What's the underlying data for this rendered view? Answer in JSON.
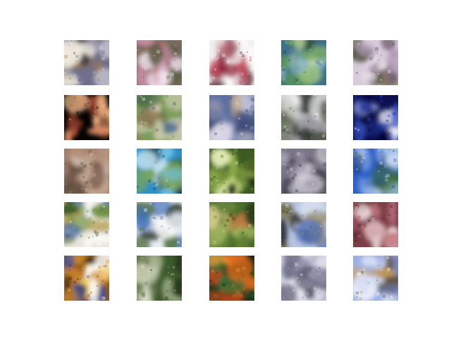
{
  "figure": {
    "background": "#ffffff",
    "rows": 5,
    "columns": 5
  },
  "tiles": [
    {
      "subject": "blurry-figure-on-pale-background",
      "palette": [
        "#6d6f8c",
        "#c9c7d6",
        "#e2d9c2",
        "#a87b3f",
        "#3c3a4a",
        "#efe9e0"
      ]
    },
    {
      "subject": "pink-and-green-texture",
      "palette": [
        "#7c6b5e",
        "#c98fa8",
        "#e9d6e4",
        "#4d5a3a",
        "#b46e7a",
        "#f1e6ef"
      ]
    },
    {
      "subject": "red-object-on-white",
      "palette": [
        "#f2eef0",
        "#8e2438",
        "#c24a5c",
        "#5a1f2b",
        "#d8b6bd",
        "#ffffff"
      ]
    },
    {
      "subject": "tree-on-blue-green",
      "palette": [
        "#3e6e8a",
        "#5f9a4e",
        "#9bc37a",
        "#27462f",
        "#8fb6c7",
        "#c9d9a8"
      ]
    },
    {
      "subject": "dark-shape-on-lavender",
      "palette": [
        "#d7cbdc",
        "#b29ab8",
        "#4a4b35",
        "#8b7d5a",
        "#efe7f0",
        "#6d5c70"
      ]
    },
    {
      "subject": "red-fruit-on-black",
      "palette": [
        "#050302",
        "#8a3b2a",
        "#c85b3c",
        "#e7936b",
        "#5a2418",
        "#f4c08e"
      ]
    },
    {
      "subject": "green-landscape",
      "palette": [
        "#7b9c5d",
        "#c5c8a8",
        "#4a7044",
        "#e1d7bf",
        "#8f7a55",
        "#3c5d8c"
      ]
    },
    {
      "subject": "blue-gray-blur",
      "palette": [
        "#5c6e9f",
        "#9ba6c8",
        "#c8a883",
        "#3f4a76",
        "#dad6e6",
        "#7d87ad"
      ]
    },
    {
      "subject": "gray-building",
      "palette": [
        "#9a9aa0",
        "#d6d6d6",
        "#4c5145",
        "#6f7a61",
        "#eeeeee",
        "#2f3330"
      ]
    },
    {
      "subject": "moon-on-dark-blue",
      "palette": [
        "#0b0f4f",
        "#1b2d8f",
        "#ffffff",
        "#a7b6f2",
        "#060832",
        "#3b56c8"
      ]
    },
    {
      "subject": "brown-texture",
      "palette": [
        "#9b7a66",
        "#c7a894",
        "#6e5144",
        "#d8c3b3",
        "#5a4a3c",
        "#b08a75"
      ]
    },
    {
      "subject": "blue-sky-with-tree",
      "palette": [
        "#2e8fc5",
        "#75c3e8",
        "#3d5f2f",
        "#0e3b5c",
        "#c6e4f3",
        "#7aa45a"
      ]
    },
    {
      "subject": "green-foliage",
      "palette": [
        "#3d5a22",
        "#8fb04c",
        "#cfe089",
        "#243316",
        "#6f8b36",
        "#e6edb8"
      ]
    },
    {
      "subject": "gray-purple-shape",
      "palette": [
        "#7a7687",
        "#bdb8c6",
        "#4a4756",
        "#dcd8e1",
        "#2f3038",
        "#9a93a8"
      ]
    },
    {
      "subject": "blue-sky-over-hill",
      "palette": [
        "#2d5fc6",
        "#7fa3e4",
        "#d6e2f4",
        "#3f6e3a",
        "#a9c7ec",
        "#1b3d7a"
      ]
    },
    {
      "subject": "green-and-white-objects",
      "palette": [
        "#e8e6dd",
        "#6f8f3e",
        "#3b5a2a",
        "#b7a35d",
        "#4d6aa3",
        "#ffffff"
      ]
    },
    {
      "subject": "tree-under-blue-sky",
      "palette": [
        "#e9edf6",
        "#3f6fb6",
        "#2f3b26",
        "#97a9c9",
        "#5e7a4a",
        "#ffffff"
      ]
    },
    {
      "subject": "palm-trees",
      "palette": [
        "#4a6d2a",
        "#9eb75e",
        "#c77a45",
        "#2a3a1a",
        "#d9cf8f",
        "#6e8c3d"
      ]
    },
    {
      "subject": "arch-shape-on-blue",
      "palette": [
        "#b7c3e0",
        "#5773b8",
        "#e9ecf4",
        "#6d6a3c",
        "#2a2f3a",
        "#9b8e5a"
      ]
    },
    {
      "subject": "pink-red-blur",
      "palette": [
        "#7e3e48",
        "#c27982",
        "#e6c4c7",
        "#4a1f27",
        "#a4555f",
        "#f2e3e4"
      ]
    },
    {
      "subject": "orange-with-blue-stripe",
      "palette": [
        "#9a5a16",
        "#d08a2e",
        "#3b2a10",
        "#2d4fb0",
        "#f2d27a",
        "#ffffff"
      ]
    },
    {
      "subject": "green-and-pale-texture",
      "palette": [
        "#3e5a2c",
        "#a3b08a",
        "#dde1cf",
        "#6f7a52",
        "#243019",
        "#c8ceb0"
      ]
    },
    {
      "subject": "orange-flame-on-dark-green",
      "palette": [
        "#1b3a1f",
        "#e06a1c",
        "#f6a23a",
        "#3e6c35",
        "#0d1f10",
        "#c9421a"
      ]
    },
    {
      "subject": "gray-lavender-shape",
      "palette": [
        "#cfcfe0",
        "#8e8ea9",
        "#ebebf2",
        "#4d5065",
        "#b0b0c6",
        "#6e6f88"
      ]
    },
    {
      "subject": "bird-on-blue",
      "palette": [
        "#9fb1e3",
        "#d4dcf1",
        "#5a4b2c",
        "#c89d5e",
        "#6f83c7",
        "#ffffff"
      ]
    }
  ]
}
